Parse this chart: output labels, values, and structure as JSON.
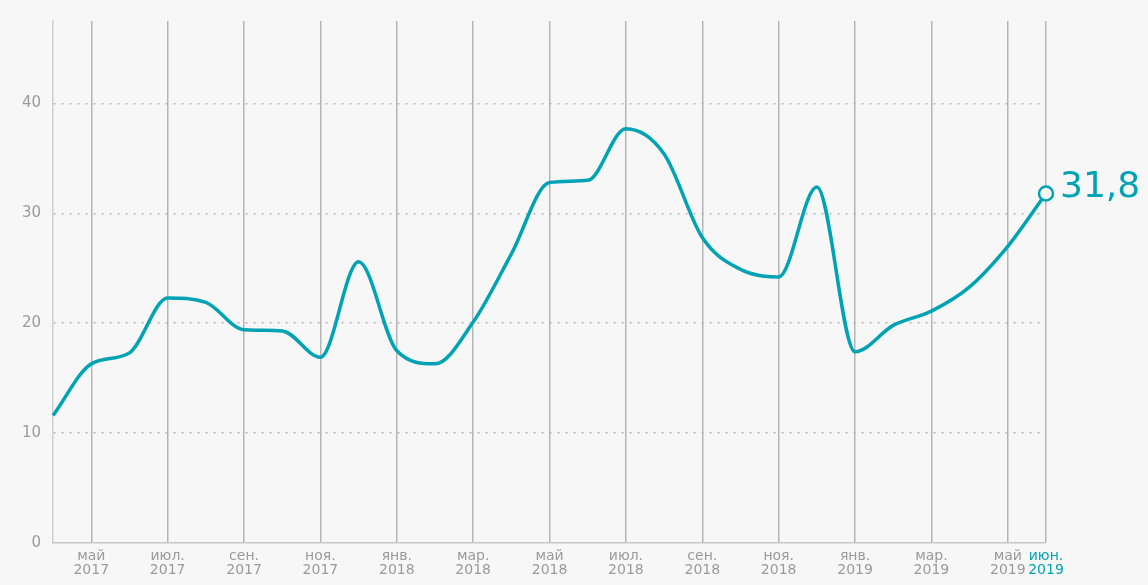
{
  "chart_data": {
    "type": "line",
    "categories": [
      null,
      "май 2017",
      null,
      "июл. 2017",
      null,
      "сен. 2017",
      null,
      "ноя. 2017",
      null,
      "янв. 2018",
      null,
      "мар. 2018",
      null,
      "май 2018",
      null,
      "июл. 2018",
      null,
      "сен. 2018",
      null,
      "ноя. 2018",
      null,
      "янв. 2019",
      null,
      "мар. 2019",
      null,
      "май 2019",
      "июн. 2019"
    ],
    "series": [
      {
        "color": "#00a3b4",
        "values": [
          11.6,
          16.3,
          17.3,
          22.3,
          21.9,
          19.4,
          19.3,
          16.9,
          25.6,
          17.5,
          16.3,
          20.1,
          26.3,
          32.8,
          33.0,
          37.7,
          35.4,
          27.8,
          24.9,
          24.2,
          32.4,
          17.4,
          19.8,
          21.1,
          23.3,
          27.0,
          31.8
        ],
        "value_labels": [
          null,
          null,
          null,
          null,
          null,
          null,
          null,
          null,
          null,
          null,
          null,
          null,
          null,
          null,
          null,
          null,
          null,
          null,
          null,
          null,
          null,
          null,
          null,
          null,
          null,
          null,
          "31,8"
        ]
      }
    ],
    "ylim": [
      0,
      47.5
    ],
    "yticks": [
      0,
      10,
      20,
      30,
      40
    ],
    "grid": true
  }
}
